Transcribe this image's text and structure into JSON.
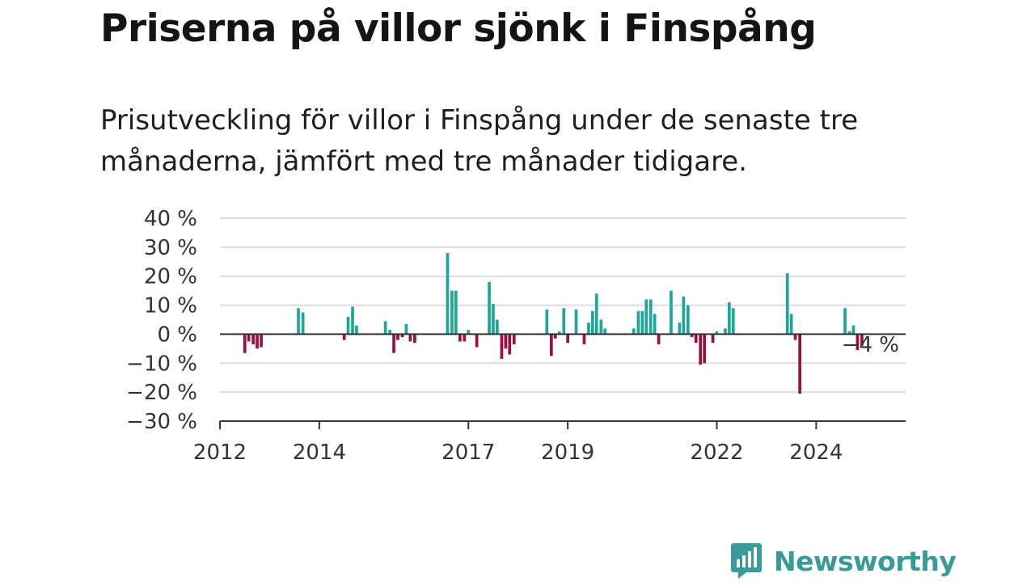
{
  "title": "Priserna på villor sjönk i Finspång",
  "subtitle": "Prisutveckling för villor i Finspång under de senaste tre månaderna, jämfört med tre månader tidigare.",
  "brand": {
    "name": "Newsworthy",
    "logo_icon": "chart-bars-icon"
  },
  "colors": {
    "positive": "#1fa69a",
    "negative": "#9b0f3f",
    "grid": "#dddddd",
    "axis": "#333333"
  },
  "chart_data": {
    "type": "bar",
    "ylim": [
      -30,
      40
    ],
    "yticks": [
      40,
      30,
      20,
      10,
      0,
      -10,
      -20,
      -30
    ],
    "ytick_labels": [
      "40 %",
      "30 %",
      "20 %",
      "10 %",
      "0 %",
      "−10 %",
      "−20 %",
      "−30 %"
    ],
    "xlim": [
      2012.0,
      2025.8
    ],
    "xticks": [
      2012,
      2014,
      2017,
      2019,
      2022,
      2024
    ],
    "xtick_labels": [
      "2012",
      "2014",
      "2017",
      "2019",
      "2022",
      "2024"
    ],
    "grid": true,
    "annotation": {
      "text": "−4 %",
      "x": 2025.3,
      "y": -4
    },
    "series": [
      {
        "x": [
          2012.5,
          2012.58,
          2012.67,
          2012.75,
          2012.83,
          2013.58,
          2013.67,
          2014.5,
          2014.58,
          2014.67,
          2014.75,
          2015.33,
          2015.42,
          2015.5,
          2015.58,
          2015.67,
          2015.75,
          2015.83,
          2015.92,
          2016.58,
          2016.67,
          2016.75,
          2016.83,
          2016.92,
          2017.0,
          2017.17,
          2017.42,
          2017.5,
          2017.58,
          2017.67,
          2017.75,
          2017.83,
          2017.92,
          2018.58,
          2018.67,
          2018.75,
          2018.83,
          2018.92,
          2019.0,
          2019.17,
          2019.33,
          2019.42,
          2019.5,
          2019.58,
          2019.67,
          2019.75,
          2020.33,
          2020.42,
          2020.5,
          2020.58,
          2020.67,
          2020.75,
          2020.83,
          2021.08,
          2021.25,
          2021.33,
          2021.42,
          2021.5,
          2021.58,
          2021.67,
          2021.75,
          2021.92,
          2022.0,
          2022.17,
          2022.25,
          2022.33,
          2023.42,
          2023.5,
          2023.58,
          2023.67,
          2024.58,
          2024.67,
          2024.75,
          2024.83,
          2024.92
        ],
        "values": [
          -6.5,
          -2.5,
          -3.5,
          -5,
          -4.5,
          9,
          7.5,
          -2,
          6,
          9.5,
          3,
          4.5,
          1.5,
          -6.5,
          -2,
          -1,
          3.5,
          -2.5,
          -3,
          28,
          15,
          15,
          -2.5,
          -2.5,
          1.5,
          -4.5,
          18,
          10.5,
          5,
          -8.5,
          -5,
          -7,
          -3.5,
          8.5,
          -7.5,
          -1.5,
          1,
          9,
          -3,
          8.5,
          -3.5,
          4,
          8,
          14,
          5,
          2,
          2,
          8,
          8,
          12,
          12,
          7,
          -3.5,
          15,
          4,
          13,
          10,
          -1,
          -3,
          -10.5,
          -10,
          -3,
          1,
          2,
          11,
          9,
          21,
          7,
          -2,
          -20.5,
          9,
          1,
          3,
          -5.5,
          -4
        ]
      }
    ]
  }
}
